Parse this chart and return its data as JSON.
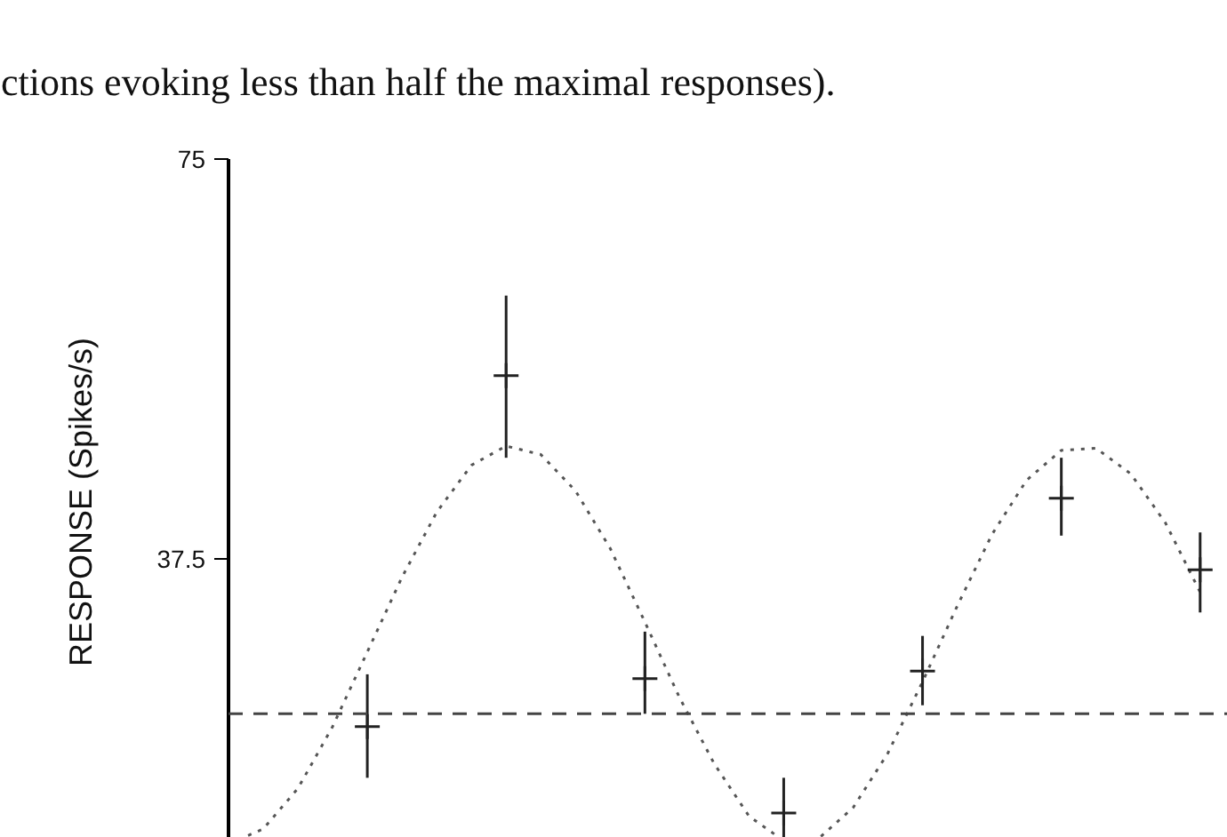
{
  "chart_data": {
    "type": "line",
    "annotations": [
      "ctions evoking less than half the maximal responses)."
    ],
    "ylabel": "RESPONSE (Spikes/s)",
    "categories": [
      null,
      null,
      null,
      null,
      null,
      null,
      null,
      null,
      null,
      null,
      null,
      null,
      null,
      null,
      null,
      null,
      null,
      null,
      null,
      null,
      null,
      null,
      null,
      null,
      null,
      null,
      null,
      null,
      null
    ],
    "ylim": [
      10.7,
      75
    ],
    "yticks": [
      37.5,
      75
    ],
    "tick_labels": "y",
    "grid": false,
    "series": [
      {
        "color": "#555555",
        "line_style": "dotted",
        "marker": "none",
        "values": [
          10.8,
          12.2,
          16,
          21.8,
          28.8,
          35.8,
          41.9,
          46.3,
          48.1,
          47.3,
          43.9,
          38.5,
          31.6,
          24.5,
          18.3,
          13.4,
          11.1,
          11.3,
          14.2,
          19.3,
          26,
          33.1,
          39.8,
          44.9,
          47.7,
          47.9,
          45.5,
          40.9,
          34.4
        ]
      },
      {
        "type": "scatter",
        "color": "#222222",
        "marker": "cross",
        "values": [
          null,
          null,
          null,
          null,
          21.8,
          null,
          null,
          null,
          54.7,
          null,
          null,
          null,
          26.3,
          null,
          null,
          null,
          13.7,
          null,
          null,
          null,
          27,
          null,
          null,
          null,
          43.2,
          null,
          null,
          null,
          36.5
        ],
        "errors": [
          null,
          null,
          null,
          null,
          [
            17,
            26.7
          ],
          null,
          null,
          null,
          [
            47,
            62.2
          ],
          null,
          null,
          null,
          [
            23,
            30.7
          ],
          null,
          null,
          null,
          [
            11,
            17
          ],
          null,
          null,
          null,
          [
            23.8,
            30.3
          ],
          null,
          null,
          null,
          [
            39.7,
            47
          ],
          null,
          null,
          null,
          [
            32.5,
            40
          ]
        ]
      }
    ],
    "ref_lines": [
      {
        "axis": "y",
        "value": 23,
        "line_style": "dashed",
        "color": "#444444"
      }
    ]
  }
}
